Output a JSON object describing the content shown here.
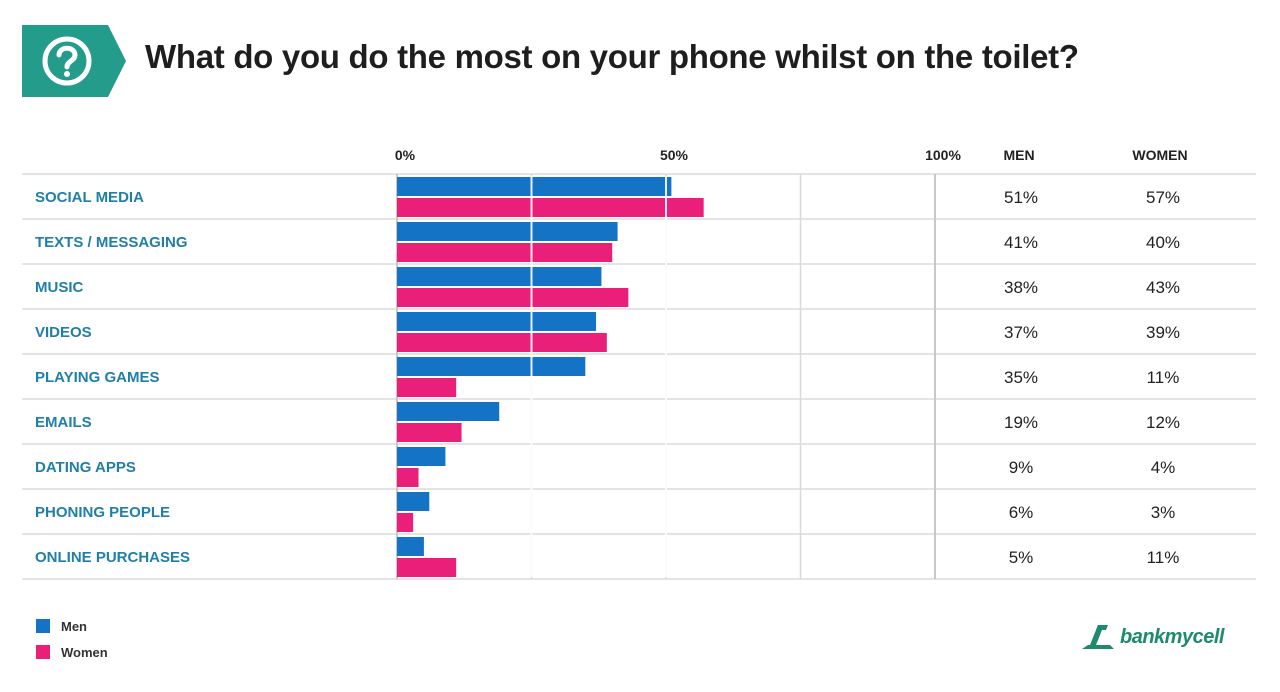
{
  "header": {
    "title": "What do you do the most on your phone whilst on the toilet?",
    "icon": "question-mark-icon",
    "badge_color": "#239c8c"
  },
  "columns": {
    "men_label": "MEN",
    "women_label": "WOMEN"
  },
  "legend": {
    "items": [
      {
        "label": "Men",
        "color": "#1473c4"
      },
      {
        "label": "Women",
        "color": "#ea1f79"
      }
    ]
  },
  "logo": {
    "text": "bankmycell",
    "icon": "bankmycell-logo-icon",
    "color": "#1e8a6e"
  },
  "chart_data": {
    "type": "bar",
    "orientation": "horizontal",
    "categories": [
      "SOCIAL MEDIA",
      "TEXTS / MESSAGING",
      "MUSIC",
      "VIDEOS",
      "PLAYING GAMES",
      "EMAILS",
      "DATING APPS",
      "PHONING PEOPLE",
      "ONLINE PURCHASES"
    ],
    "series": [
      {
        "name": "Men",
        "color": "#1473c4",
        "values": [
          51,
          41,
          38,
          37,
          35,
          19,
          9,
          6,
          5
        ],
        "labels": [
          "51%",
          "41%",
          "38%",
          "37%",
          "35%",
          "19%",
          "9%",
          "6%",
          "5%"
        ]
      },
      {
        "name": "Women",
        "color": "#ea1f79",
        "values": [
          57,
          40,
          43,
          39,
          11,
          12,
          4,
          3,
          11
        ],
        "labels": [
          "57%",
          "40%",
          "43%",
          "39%",
          "11%",
          "12%",
          "4%",
          "3%",
          "11%"
        ]
      }
    ],
    "xlim": [
      0,
      100
    ],
    "x_ticks": [
      "0%",
      "50%",
      "100%"
    ],
    "grid": true,
    "category_color": "#1f7fa8"
  }
}
